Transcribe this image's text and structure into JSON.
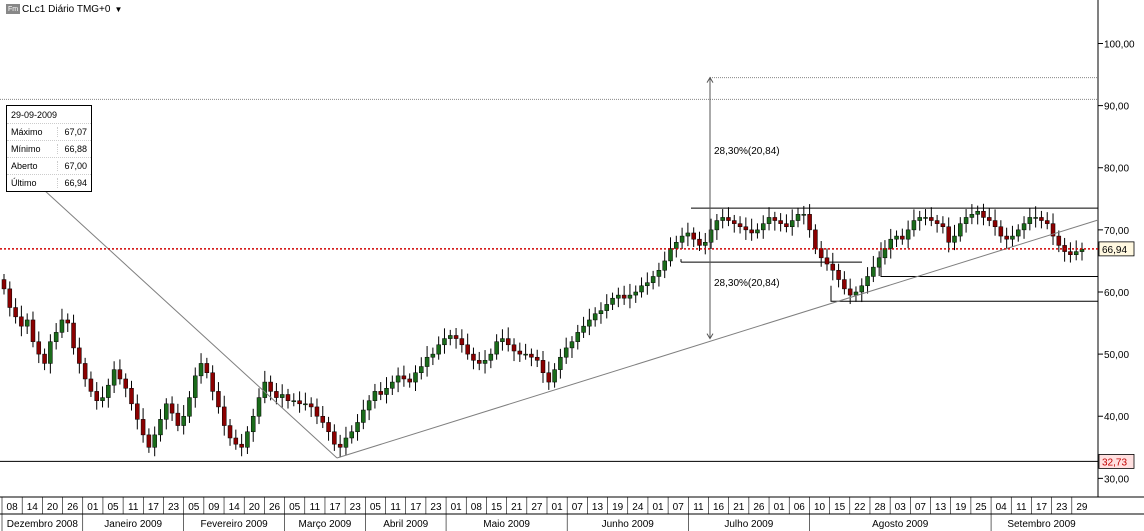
{
  "header": {
    "badge": "Fm",
    "title": "CLc1 Diário TMG+0"
  },
  "info_box": {
    "date": "29-09-2009",
    "rows": [
      {
        "label": "Máximo",
        "value": "67,07"
      },
      {
        "label": "Mínimo",
        "value": "66,88"
      },
      {
        "label": "Aberto",
        "value": "67,00"
      },
      {
        "label": "Último",
        "value": "66,94"
      }
    ]
  },
  "colors": {
    "up": "#1a6b1a",
    "down": "#8b0000",
    "last_price": "#d00000",
    "grid": "#999999",
    "trend": "#7f7f7f"
  },
  "chart_data": {
    "type": "candlestick",
    "y_axis": {
      "ticks": [
        30,
        40,
        50,
        60,
        70,
        80,
        90,
        100
      ],
      "tick_labels": [
        "30,00",
        "40,00",
        "50,00",
        "60,00",
        "70,00",
        "80,00",
        "90,00",
        "100,00"
      ],
      "range": [
        27,
        107
      ]
    },
    "last_price": {
      "value": 66.94,
      "label": "66,94"
    },
    "low_marker": {
      "value": 32.73,
      "label": "32,73"
    },
    "x_day_labels": [
      "08",
      "14",
      "20",
      "26",
      "01",
      "05",
      "11",
      "17",
      "23",
      "05",
      "09",
      "14",
      "20",
      "26",
      "05",
      "11",
      "17",
      "23",
      "05",
      "11",
      "17",
      "23",
      "01",
      "08",
      "15",
      "21",
      "27",
      "01",
      "07",
      "13",
      "19",
      "24",
      "01",
      "07",
      "11",
      "16",
      "21",
      "26",
      "01",
      "06",
      "10",
      "15",
      "22",
      "28",
      "03",
      "07",
      "13",
      "19",
      "25",
      "04",
      "11",
      "17",
      "23",
      "29"
    ],
    "x_month_labels": [
      "Dezembro 2008",
      "Janeiro 2009",
      "Fevereiro 2009",
      "Março 2009",
      "Abril 2009",
      "Maio 2009",
      "Junho 2009",
      "Julho 2009",
      "Agosto 2009",
      "Setembro 2009"
    ],
    "annotations": [
      {
        "text": "28,30%(20,84)"
      },
      {
        "text": "28,30%(20,84)"
      }
    ],
    "key_levels": [
      91,
      94.5,
      73.5,
      64.8,
      62.5,
      58.5
    ],
    "closes": [
      60.5,
      57.5,
      56,
      54.5,
      55.5,
      52,
      50,
      48.5,
      52,
      53.5,
      55.5,
      55,
      51,
      48.5,
      46,
      44,
      42.5,
      43,
      45,
      47.5,
      46,
      44.5,
      42,
      39.5,
      37,
      35,
      37,
      39.5,
      42,
      40.5,
      38.5,
      40,
      43,
      46.5,
      48.5,
      47,
      44,
      41.5,
      38.5,
      36.5,
      35.5,
      35,
      37.5,
      40,
      43,
      45.5,
      44,
      43,
      43.5,
      42.5,
      42.5,
      42,
      42,
      41.5,
      40,
      39,
      37.5,
      35.5,
      35,
      36.5,
      37.5,
      39,
      41,
      42.5,
      44,
      43.5,
      44.5,
      45.5,
      46.5,
      46,
      45.5,
      47,
      48,
      49.5,
      50,
      51.5,
      52.5,
      53,
      52.5,
      51.5,
      50,
      49,
      48.5,
      49,
      50,
      52,
      52.5,
      51.5,
      50.5,
      50,
      50,
      49.5,
      49,
      47,
      45.5,
      47.5,
      49.5,
      51,
      52,
      53.5,
      54.5,
      55.5,
      56.5,
      57,
      58,
      59,
      59.5,
      59,
      59.5,
      60,
      61,
      61.5,
      62.5,
      63.5,
      65,
      67,
      68,
      69,
      69.5,
      68.5,
      67.5,
      68,
      70,
      71.5,
      72,
      71.5,
      71,
      70.5,
      70,
      69.5,
      70,
      71,
      72,
      71.5,
      71,
      70.5,
      71.5,
      72.5,
      72.5,
      70,
      67,
      65.5,
      64.5,
      63.5,
      62,
      60.5,
      59.5,
      60,
      61,
      62.5,
      64,
      65.5,
      67,
      68.5,
      69,
      68.5,
      70,
      71.5,
      72,
      72,
      71.5,
      71,
      70.5,
      68,
      69,
      71,
      72,
      72.5,
      73,
      72,
      71.5,
      70.5,
      69,
      68.5,
      69,
      70,
      71,
      72,
      72,
      71.5,
      71,
      69,
      67.5,
      66.5,
      66,
      66.5,
      66.9
    ]
  }
}
